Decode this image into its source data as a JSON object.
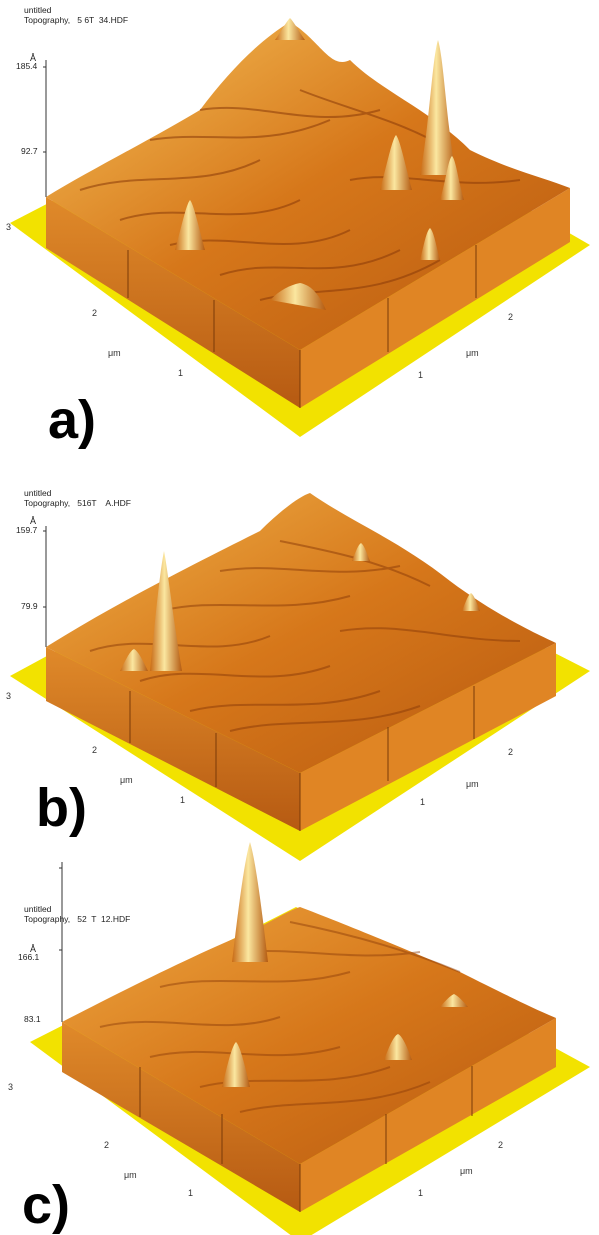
{
  "panels": [
    {
      "id": "a",
      "header": {
        "line1": "untitled",
        "line2": "Topography,   5 6T  34.HDF"
      },
      "z_unit": "Å",
      "z_ticks": [
        "185.4",
        "92.7"
      ],
      "axis_labels": {
        "left": [
          "3",
          "2",
          "1"
        ],
        "right": [
          "2",
          "1"
        ],
        "unit": "μm"
      },
      "label": "a)",
      "colors": {
        "base": "#d6771a",
        "light": "#f6c25a",
        "dark": "#8a3a08",
        "plane": "#f2e200"
      }
    },
    {
      "id": "b",
      "header": {
        "line1": "untitled",
        "line2": "Topography,   516T    A.HDF"
      },
      "z_unit": "Å",
      "z_ticks": [
        "159.7",
        "79.9"
      ],
      "axis_labels": {
        "left": [
          "3",
          "2",
          "1"
        ],
        "right": [
          "2",
          "1"
        ],
        "unit": "μm"
      },
      "label": "b)",
      "colors": {
        "base": "#d6771a",
        "light": "#f6c25a",
        "dark": "#8a3a08",
        "plane": "#f2e200"
      }
    },
    {
      "id": "c",
      "header": {
        "line1": "untitled",
        "line2": "Topography,   52  T  12.HDF"
      },
      "z_unit": "Å",
      "z_ticks": [
        "166.1",
        "83.1"
      ],
      "axis_labels": {
        "left": [
          "3",
          "2",
          "1"
        ],
        "right": [
          "2",
          "1"
        ],
        "unit": "μm"
      },
      "label": "c)",
      "colors": {
        "base": "#d6771a",
        "light": "#f6c25a",
        "dark": "#8a3a08",
        "plane": "#f2e200"
      }
    }
  ]
}
